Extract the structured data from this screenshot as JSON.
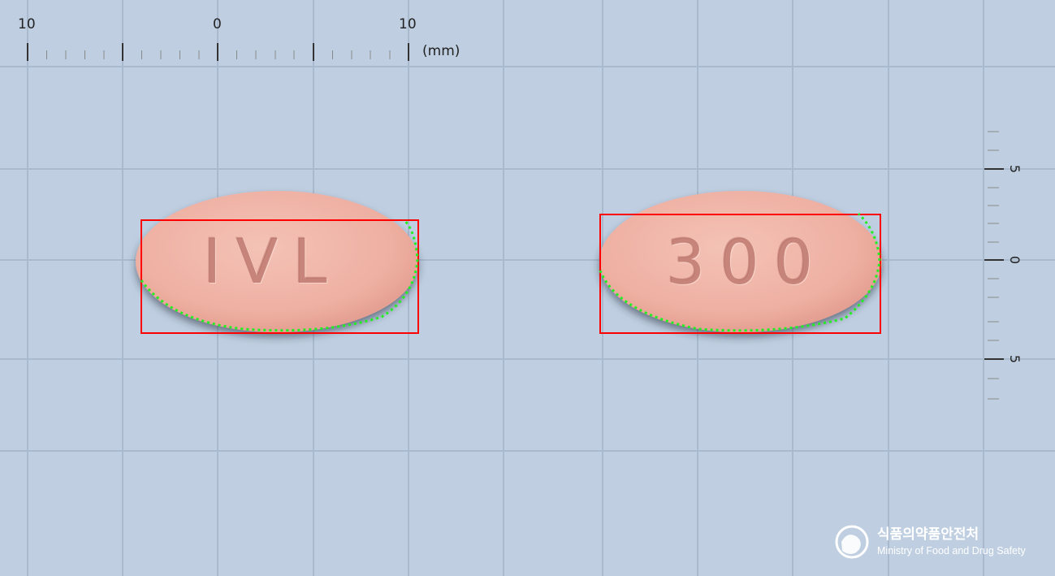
{
  "ruler": {
    "top_labels": [
      "10",
      "0",
      "10"
    ],
    "unit": "(mm)",
    "side_labels": [
      "5",
      "0",
      "5"
    ]
  },
  "tablets": [
    {
      "imprint": "IVL",
      "color": "#f0b4a6"
    },
    {
      "imprint": "300",
      "color": "#f0b4a6"
    }
  ],
  "colors": {
    "background": "#bfcfe1",
    "grid": "#a9bace",
    "bounding_box": "#ff0000",
    "contour": "#22ee22"
  },
  "watermark": {
    "korean": "식품의약품안전처",
    "english": "Ministry of Food and Drug Safety"
  }
}
